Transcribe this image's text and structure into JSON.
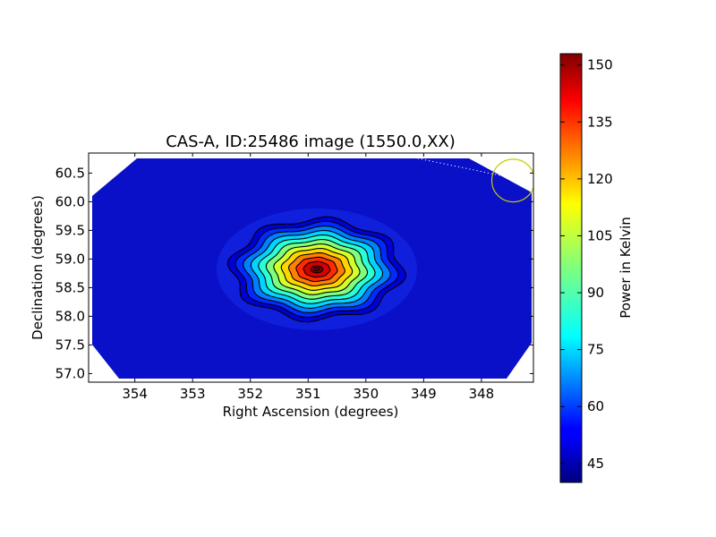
{
  "chart_data": {
    "type": "heatmap",
    "title": "CAS-A, ID:25486 image (1550.0,XX)",
    "xlabel": "Right Ascension (degrees)",
    "ylabel": "Declination (degrees)",
    "x_axis_inverted": true,
    "xlim": [
      354.8,
      347.1
    ],
    "ylim": [
      56.85,
      60.85
    ],
    "xticks": [
      354,
      353,
      352,
      351,
      350,
      349,
      348
    ],
    "yticks": [
      57.0,
      57.5,
      58.0,
      58.5,
      59.0,
      59.5,
      60.0,
      60.5
    ],
    "colormap": "jet",
    "colorbar": {
      "label": "Power in Kelvin",
      "range": [
        40,
        153
      ],
      "ticks": [
        45,
        60,
        75,
        90,
        105,
        120,
        135,
        150
      ]
    },
    "source": {
      "name": "CAS-A",
      "ra_deg": 350.85,
      "dec_deg": 58.82,
      "peak_power_K": 153,
      "background_power_K": 45,
      "contours": 12
    },
    "marker_circle": {
      "color": "#c8c800",
      "center_ra_deg": 347.45,
      "center_dec_deg": 60.37,
      "radius_deg": 0.37
    },
    "dotted_track": {
      "color": "#ffffff",
      "points": [
        [
          349.55,
          60.85
        ],
        [
          347.15,
          60.35
        ]
      ]
    },
    "grid": false,
    "legend": "none"
  }
}
